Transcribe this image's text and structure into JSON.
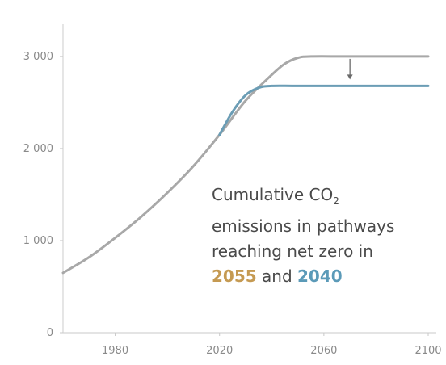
{
  "chart_data": {
    "type": "line",
    "xlim": [
      1960,
      2100
    ],
    "ylim": [
      0,
      3350
    ],
    "xticks": [
      1980,
      2020,
      2060,
      2100
    ],
    "yticks": [
      0,
      1000,
      2000,
      3000
    ],
    "ytick_labels": [
      "0",
      "1 000",
      "2 000",
      "3 000"
    ],
    "grid": false,
    "series": [
      {
        "color": "#a8a8a8",
        "x": [
          1960,
          1970,
          1980,
          1990,
          2000,
          2010,
          2020,
          2030,
          2040,
          2045,
          2050,
          2055,
          2070,
          2100
        ],
        "y": [
          650,
          820,
          1030,
          1260,
          1520,
          1810,
          2150,
          2520,
          2800,
          2920,
          2985,
          3000,
          3000,
          3000
        ]
      },
      {
        "color": "#6b9db5",
        "x": [
          2020,
          2025,
          2030,
          2035,
          2040,
          2050,
          2070,
          2100
        ],
        "y": [
          2150,
          2400,
          2580,
          2660,
          2680,
          2680,
          2680,
          2680
        ]
      }
    ],
    "annotation": {
      "line1": "Cumulative CO",
      "line1_sub": "2",
      "line2": "emissions in pathways",
      "line3": "reaching net zero in",
      "year_a": "2055",
      "connector": " and ",
      "year_b": "2040"
    },
    "arrow": {
      "x": 2070,
      "from": 3000,
      "to": 2680
    }
  }
}
